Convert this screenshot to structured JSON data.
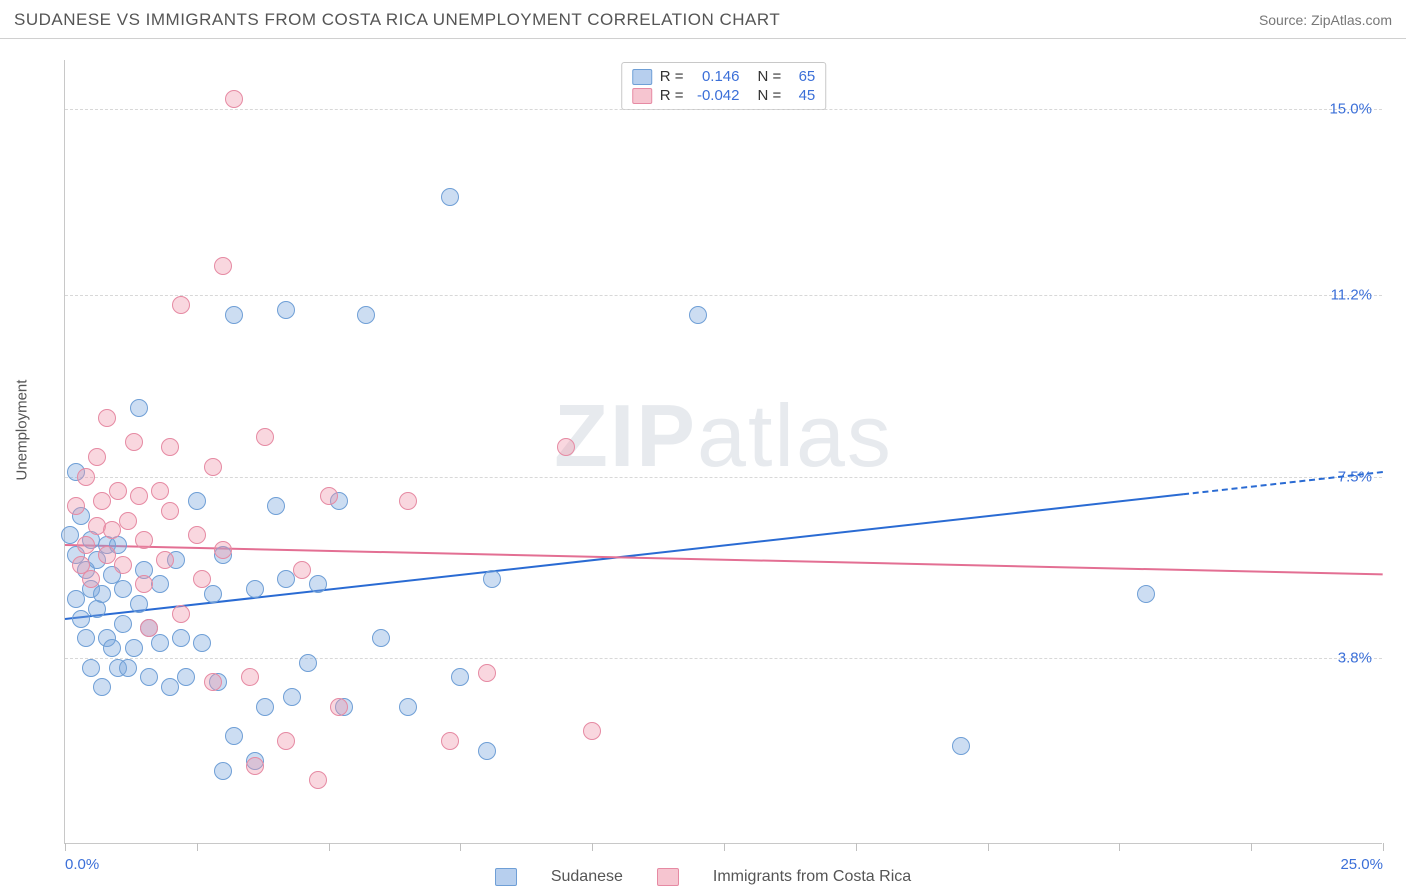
{
  "header": {
    "title": "SUDANESE VS IMMIGRANTS FROM COSTA RICA UNEMPLOYMENT CORRELATION CHART",
    "source": "Source: ZipAtlas.com"
  },
  "axes": {
    "ylabel": "Unemployment",
    "xlim": [
      0,
      25
    ],
    "ylim": [
      0,
      16
    ],
    "xticks_labeled": [
      {
        "v": 0,
        "label": "0.0%"
      },
      {
        "v": 25,
        "label": "25.0%"
      }
    ],
    "xticks_minor": [
      2.5,
      5,
      7.5,
      10,
      12.5,
      15,
      17.5,
      20,
      22.5
    ],
    "yticks": [
      {
        "v": 3.8,
        "label": "3.8%"
      },
      {
        "v": 7.5,
        "label": "7.5%"
      },
      {
        "v": 11.2,
        "label": "11.2%"
      },
      {
        "v": 15.0,
        "label": "15.0%"
      }
    ],
    "label_color": "#3b6fd8",
    "grid_color": "#d8d8d8",
    "axis_color": "#c8c8c8"
  },
  "watermark": {
    "left": "ZIP",
    "right": "atlas"
  },
  "series": [
    {
      "key": "sudanese",
      "label": "Sudanese",
      "fill": "rgba(120,165,220,0.38)",
      "stroke": "#6f9fd6",
      "swatch_fill": "#b7cfee",
      "swatch_stroke": "#6f9fd6",
      "marker_r": 9,
      "R": "0.146",
      "N": "65",
      "trend": {
        "y_at_x0": 4.6,
        "y_at_x25": 7.6,
        "solid_until_x": 21.2,
        "color": "#2a6bd3"
      },
      "points": [
        [
          0.1,
          6.3
        ],
        [
          0.2,
          7.6
        ],
        [
          0.2,
          5.9
        ],
        [
          0.2,
          5.0
        ],
        [
          0.3,
          6.7
        ],
        [
          0.3,
          4.6
        ],
        [
          0.4,
          5.6
        ],
        [
          0.4,
          4.2
        ],
        [
          0.5,
          5.2
        ],
        [
          0.5,
          6.2
        ],
        [
          0.5,
          3.6
        ],
        [
          0.6,
          4.8
        ],
        [
          0.6,
          5.8
        ],
        [
          0.7,
          5.1
        ],
        [
          0.7,
          3.2
        ],
        [
          0.8,
          4.2
        ],
        [
          0.8,
          6.1
        ],
        [
          0.9,
          5.5
        ],
        [
          0.9,
          4.0
        ],
        [
          1.0,
          6.1
        ],
        [
          1.0,
          3.6
        ],
        [
          1.1,
          4.5
        ],
        [
          1.1,
          5.2
        ],
        [
          1.2,
          3.6
        ],
        [
          1.3,
          4.0
        ],
        [
          1.4,
          8.9
        ],
        [
          1.4,
          4.9
        ],
        [
          1.5,
          5.6
        ],
        [
          1.6,
          3.4
        ],
        [
          1.6,
          4.4
        ],
        [
          1.8,
          5.3
        ],
        [
          1.8,
          4.1
        ],
        [
          2.0,
          3.2
        ],
        [
          2.1,
          5.8
        ],
        [
          2.2,
          4.2
        ],
        [
          2.3,
          3.4
        ],
        [
          2.5,
          7.0
        ],
        [
          2.6,
          4.1
        ],
        [
          2.8,
          5.1
        ],
        [
          2.9,
          3.3
        ],
        [
          3.0,
          5.9
        ],
        [
          3.0,
          1.5
        ],
        [
          3.2,
          2.2
        ],
        [
          3.2,
          10.8
        ],
        [
          3.6,
          1.7
        ],
        [
          3.6,
          5.2
        ],
        [
          3.8,
          2.8
        ],
        [
          4.0,
          6.9
        ],
        [
          4.2,
          10.9
        ],
        [
          4.2,
          5.4
        ],
        [
          4.3,
          3.0
        ],
        [
          4.6,
          3.7
        ],
        [
          4.8,
          5.3
        ],
        [
          5.2,
          7.0
        ],
        [
          5.3,
          2.8
        ],
        [
          5.7,
          10.8
        ],
        [
          6.0,
          4.2
        ],
        [
          6.5,
          2.8
        ],
        [
          7.3,
          13.2
        ],
        [
          7.5,
          3.4
        ],
        [
          8.0,
          1.9
        ],
        [
          8.1,
          5.4
        ],
        [
          12.0,
          10.8
        ],
        [
          17.0,
          2.0
        ],
        [
          20.5,
          5.1
        ]
      ]
    },
    {
      "key": "costa_rica",
      "label": "Immigrants from Costa Rica",
      "fill": "rgba(240,150,170,0.38)",
      "stroke": "#e68aa3",
      "swatch_fill": "#f6c5d0",
      "swatch_stroke": "#e68aa3",
      "marker_r": 9,
      "R": "-0.042",
      "N": "45",
      "trend": {
        "y_at_x0": 6.1,
        "y_at_x25": 5.5,
        "solid_until_x": 25,
        "color": "#e36f93"
      },
      "points": [
        [
          0.2,
          6.9
        ],
        [
          0.3,
          5.7
        ],
        [
          0.4,
          7.5
        ],
        [
          0.4,
          6.1
        ],
        [
          0.5,
          5.4
        ],
        [
          0.6,
          7.9
        ],
        [
          0.6,
          6.5
        ],
        [
          0.7,
          7.0
        ],
        [
          0.8,
          5.9
        ],
        [
          0.8,
          8.7
        ],
        [
          0.9,
          6.4
        ],
        [
          1.0,
          7.2
        ],
        [
          1.1,
          5.7
        ],
        [
          1.2,
          6.6
        ],
        [
          1.3,
          8.2
        ],
        [
          1.4,
          7.1
        ],
        [
          1.5,
          6.2
        ],
        [
          1.5,
          5.3
        ],
        [
          1.6,
          4.4
        ],
        [
          1.8,
          7.2
        ],
        [
          1.9,
          5.8
        ],
        [
          2.0,
          6.8
        ],
        [
          2.0,
          8.1
        ],
        [
          2.2,
          4.7
        ],
        [
          2.2,
          11.0
        ],
        [
          2.5,
          6.3
        ],
        [
          2.6,
          5.4
        ],
        [
          2.8,
          3.3
        ],
        [
          2.8,
          7.7
        ],
        [
          3.0,
          11.8
        ],
        [
          3.0,
          6.0
        ],
        [
          3.2,
          15.2
        ],
        [
          3.5,
          3.4
        ],
        [
          3.6,
          1.6
        ],
        [
          3.8,
          8.3
        ],
        [
          4.2,
          2.1
        ],
        [
          4.5,
          5.6
        ],
        [
          4.8,
          1.3
        ],
        [
          5.0,
          7.1
        ],
        [
          5.2,
          2.8
        ],
        [
          6.5,
          7.0
        ],
        [
          7.3,
          2.1
        ],
        [
          9.5,
          8.1
        ],
        [
          10.0,
          2.3
        ],
        [
          8.0,
          3.5
        ]
      ]
    }
  ],
  "legend": {
    "stat_labels": {
      "R": "R =",
      "N": "N ="
    }
  }
}
